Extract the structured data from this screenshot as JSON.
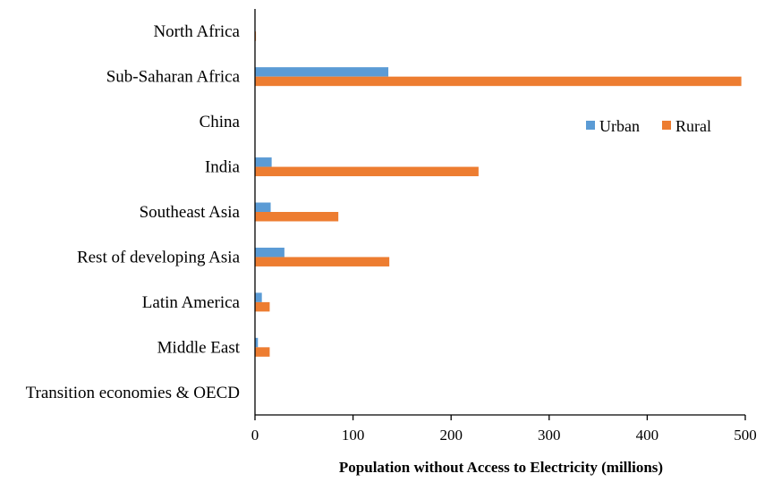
{
  "chart_data": {
    "type": "bar",
    "orientation": "horizontal",
    "categories": [
      "North Africa",
      "Sub-Saharan Africa",
      "China",
      "India",
      "Southeast Asia",
      "Rest of developing Asia",
      "Latin America",
      "Middle East",
      "Transition economies & OECD"
    ],
    "series": [
      {
        "name": "Urban",
        "color": "#5b9bd5",
        "values": [
          0,
          136,
          0,
          17,
          16,
          30,
          7,
          3,
          0
        ]
      },
      {
        "name": "Rural",
        "color": "#ed7d31",
        "values": [
          1,
          496,
          0,
          228,
          85,
          137,
          15,
          15,
          0
        ]
      }
    ],
    "xlim": [
      0,
      500
    ],
    "xticks": [
      "0",
      "100",
      "200",
      "300",
      "400",
      "500"
    ],
    "xlabel": "Population without Access to Electricity (millions)",
    "ylabel": "",
    "title": "",
    "legend": "inside-right",
    "grid": false
  }
}
